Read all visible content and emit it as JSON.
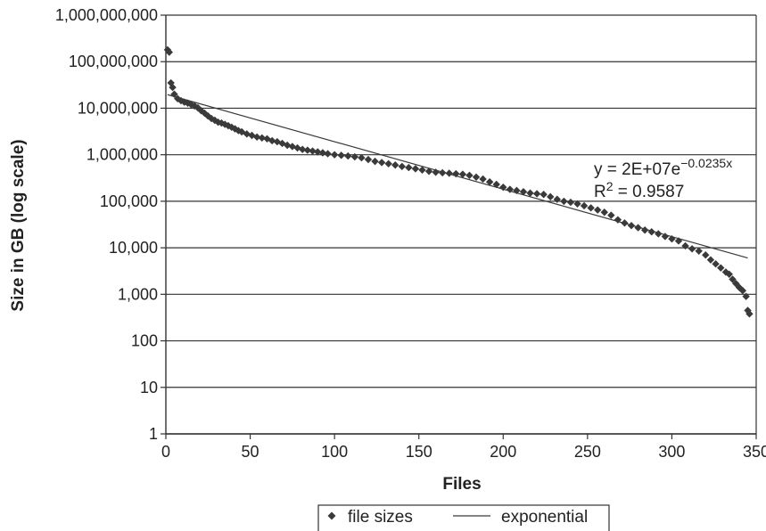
{
  "chart_data": {
    "type": "scatter",
    "title": "",
    "xlabel": "Files",
    "ylabel": "Size in GB (log scale)",
    "xlim": [
      0,
      350
    ],
    "ylim": [
      1,
      1000000000
    ],
    "y_scale": "log",
    "grid": "horizontal",
    "legend_position": "bottom",
    "x_ticks": [
      "0",
      "50",
      "100",
      "150",
      "200",
      "250",
      "300",
      "350"
    ],
    "y_ticks": [
      "1",
      "10",
      "100",
      "1,000",
      "10,000",
      "100,000",
      "1,000,000",
      "10,000,000",
      "100,000,000",
      "1,000,000,000"
    ],
    "series": [
      {
        "name": "file sizes",
        "style": "markers",
        "color": "#3a3a3a",
        "marker": "diamond",
        "points": [
          [
            1,
            180000000
          ],
          [
            2,
            160000000
          ],
          [
            3,
            35000000
          ],
          [
            4,
            28000000
          ],
          [
            5,
            20000000
          ],
          [
            7,
            16000000
          ],
          [
            9,
            14500000
          ],
          [
            11,
            13500000
          ],
          [
            13,
            12800000
          ],
          [
            15,
            12000000
          ],
          [
            17,
            11200000
          ],
          [
            19,
            10200000
          ],
          [
            21,
            8800000
          ],
          [
            23,
            7800000
          ],
          [
            25,
            6800000
          ],
          [
            27,
            6000000
          ],
          [
            29,
            5500000
          ],
          [
            31,
            5000000
          ],
          [
            33,
            4800000
          ],
          [
            35,
            4500000
          ],
          [
            37,
            4200000
          ],
          [
            39,
            3900000
          ],
          [
            41,
            3600000
          ],
          [
            43,
            3300000
          ],
          [
            45,
            3100000
          ],
          [
            48,
            2800000
          ],
          [
            51,
            2600000
          ],
          [
            54,
            2400000
          ],
          [
            57,
            2300000
          ],
          [
            60,
            2200000
          ],
          [
            63,
            2000000
          ],
          [
            66,
            1900000
          ],
          [
            69,
            1750000
          ],
          [
            72,
            1600000
          ],
          [
            75,
            1500000
          ],
          [
            78,
            1400000
          ],
          [
            81,
            1300000
          ],
          [
            84,
            1250000
          ],
          [
            87,
            1200000
          ],
          [
            90,
            1150000
          ],
          [
            93,
            1100000
          ],
          [
            96,
            1050000
          ],
          [
            100,
            1000000
          ],
          [
            104,
            970000
          ],
          [
            108,
            940000
          ],
          [
            112,
            900000
          ],
          [
            116,
            860000
          ],
          [
            120,
            790000
          ],
          [
            124,
            720000
          ],
          [
            128,
            680000
          ],
          [
            132,
            640000
          ],
          [
            136,
            600000
          ],
          [
            140,
            560000
          ],
          [
            144,
            530000
          ],
          [
            148,
            500000
          ],
          [
            152,
            470000
          ],
          [
            156,
            440000
          ],
          [
            160,
            420000
          ],
          [
            164,
            410000
          ],
          [
            168,
            400000
          ],
          [
            172,
            390000
          ],
          [
            176,
            380000
          ],
          [
            180,
            360000
          ],
          [
            184,
            330000
          ],
          [
            188,
            300000
          ],
          [
            192,
            260000
          ],
          [
            196,
            230000
          ],
          [
            200,
            200000
          ],
          [
            204,
            180000
          ],
          [
            208,
            170000
          ],
          [
            212,
            160000
          ],
          [
            216,
            150000
          ],
          [
            220,
            145000
          ],
          [
            224,
            140000
          ],
          [
            228,
            125000
          ],
          [
            232,
            110000
          ],
          [
            236,
            100000
          ],
          [
            240,
            95000
          ],
          [
            244,
            88000
          ],
          [
            248,
            80000
          ],
          [
            252,
            72000
          ],
          [
            256,
            65000
          ],
          [
            260,
            58000
          ],
          [
            264,
            50000
          ],
          [
            268,
            40000
          ],
          [
            272,
            34000
          ],
          [
            276,
            30000
          ],
          [
            280,
            27000
          ],
          [
            284,
            24000
          ],
          [
            288,
            22000
          ],
          [
            292,
            20000
          ],
          [
            296,
            17500
          ],
          [
            300,
            15500
          ],
          [
            304,
            14000
          ],
          [
            308,
            11000
          ],
          [
            312,
            9500
          ],
          [
            316,
            8500
          ],
          [
            320,
            7000
          ],
          [
            323,
            5500
          ],
          [
            326,
            4500
          ],
          [
            329,
            3700
          ],
          [
            332,
            3000
          ],
          [
            334,
            2700
          ],
          [
            336,
            2100
          ],
          [
            338,
            1700
          ],
          [
            340,
            1400
          ],
          [
            342,
            1200
          ],
          [
            344,
            900
          ],
          [
            345,
            450
          ],
          [
            346,
            380
          ]
        ]
      },
      {
        "name": "exponential",
        "style": "line",
        "color": "#3a3a3a",
        "fit": {
          "a": 20000000,
          "b": -0.0235,
          "x_from": 1,
          "x_to": 345
        }
      }
    ],
    "annotations": {
      "equation_prefix": "y = 2E+07e",
      "equation_exponent": "−0.0235x",
      "r_squared_prefix": "R",
      "r_squared_sup": "2",
      "r_squared_value": " = 0.9587"
    }
  }
}
